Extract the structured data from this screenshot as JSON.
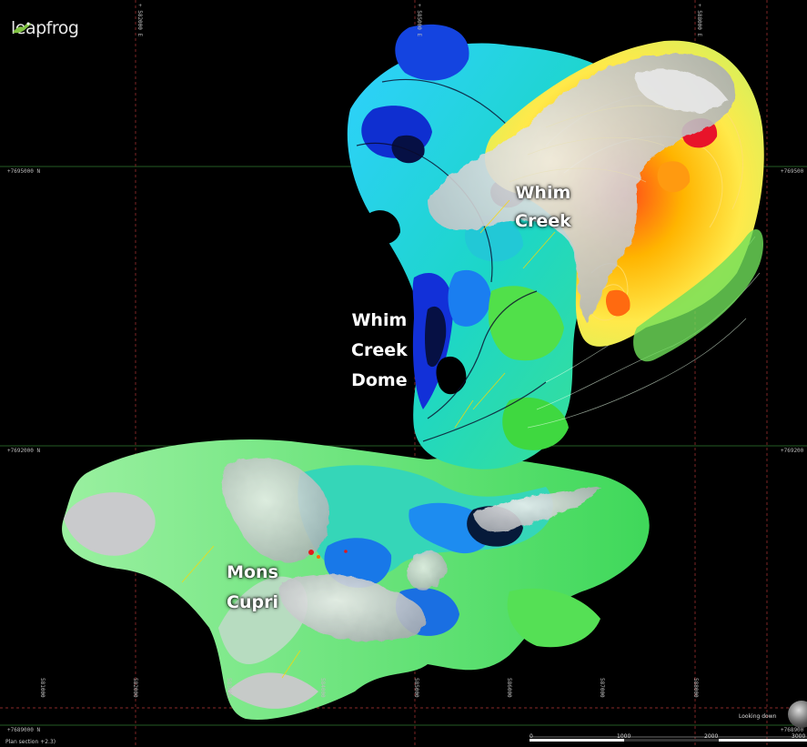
{
  "app": {
    "logo_text": "leapfrog"
  },
  "labels": {
    "whim_creek": [
      "Whim",
      "Creek"
    ],
    "whim_creek_dome": [
      "Whim",
      "Creek",
      "Dome"
    ],
    "mons_cupri": [
      "Mons",
      "Cupri"
    ]
  },
  "grid": {
    "northings": [
      "+7695000 N",
      "+7692000 N",
      "+7689000 N"
    ],
    "northings_right": [
      "+769500",
      "+769200",
      "+768900"
    ],
    "eastings_top": [
      "+ 582000 E",
      "+ 585000 E",
      "+ 588000 E"
    ],
    "eastings_bottom": [
      "581000",
      "582000",
      "583000",
      "584000",
      "585000",
      "586000",
      "587000",
      "588000"
    ]
  },
  "view": {
    "section": "Plan section +2.3)",
    "orientation": "Looking down"
  },
  "scale_bar": {
    "ticks": [
      "0",
      "1000",
      "2000",
      "3000"
    ]
  },
  "colors": {
    "background": "#000000",
    "grid_line": "#2f7d2f",
    "easting_line": "#8a2a2a",
    "high": "#e2142a",
    "low": "#0a1fd8",
    "mid": "#22d8d8",
    "green": "#44e444",
    "surface": "#cfd0d3"
  }
}
